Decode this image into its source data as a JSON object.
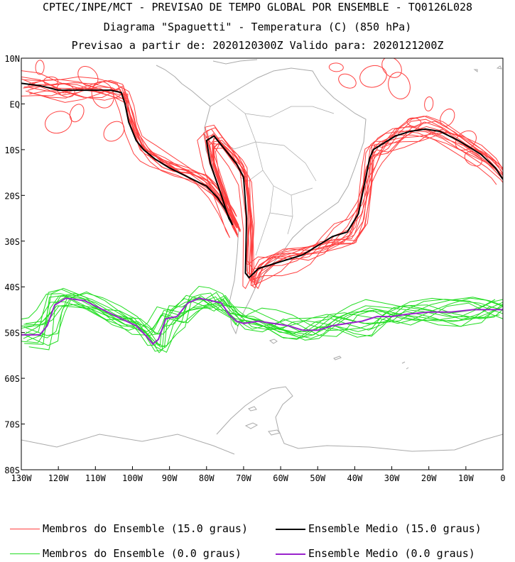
{
  "header": {
    "line1": "CPTEC/INPE/MCT - PREVISAO DE TEMPO GLOBAL POR ENSEMBLE - TQ0126L028",
    "line2": "Diagrama \"Spaguetti\" - Temperatura (C) (850 hPa)",
    "line3": "Previsao a partir de: 2020120300Z  Valido para: 2020121200Z"
  },
  "colors": {
    "members_15": "#ff4040",
    "mean_15": "#000000",
    "members_0": "#22dd22",
    "mean_0": "#9922cc",
    "coast": "#aaaaaa",
    "frame": "#000000"
  },
  "legend": [
    {
      "label": "Membros do Ensemble (15.0 graus)",
      "color": "#ff4040",
      "width": 1
    },
    {
      "label": "Ensemble Medio (15.0 graus)",
      "color": "#000000",
      "width": 2
    },
    {
      "label": "Membros do Ensemble (0.0 graus)",
      "color": "#22dd22",
      "width": 1
    },
    {
      "label": "Ensemble Medio (0.0 graus)",
      "color": "#9922cc",
      "width": 2
    }
  ],
  "chart_data": {
    "type": "line",
    "subtype": "spaghetti contour map",
    "xlim": [
      -130,
      0
    ],
    "ylim": [
      -80,
      10
    ],
    "x_ticks": [
      {
        "v": -130,
        "label": "130W"
      },
      {
        "v": -120,
        "label": "120W"
      },
      {
        "v": -110,
        "label": "110W"
      },
      {
        "v": -100,
        "label": "100W"
      },
      {
        "v": -90,
        "label": "90W"
      },
      {
        "v": -80,
        "label": "80W"
      },
      {
        "v": -70,
        "label": "70W"
      },
      {
        "v": -60,
        "label": "60W"
      },
      {
        "v": -50,
        "label": "50W"
      },
      {
        "v": -40,
        "label": "40W"
      },
      {
        "v": -30,
        "label": "30W"
      },
      {
        "v": -20,
        "label": "20W"
      },
      {
        "v": -10,
        "label": "10W"
      },
      {
        "v": 0,
        "label": "0"
      }
    ],
    "y_ticks": [
      {
        "v": 10,
        "label": "10N"
      },
      {
        "v": 0,
        "label": "EQ"
      },
      {
        "v": -10,
        "label": "10S"
      },
      {
        "v": -20,
        "label": "20S"
      },
      {
        "v": -30,
        "label": "30S"
      },
      {
        "v": -40,
        "label": "40S"
      },
      {
        "v": -50,
        "label": "50S"
      },
      {
        "v": -60,
        "label": "60S"
      },
      {
        "v": -70,
        "label": "70S"
      },
      {
        "v": -80,
        "label": "80S"
      }
    ],
    "series": [
      {
        "name": "Ensemble Medio (15.0 graus)",
        "contour_value": 15.0,
        "x": [
          -130,
          -125,
          -120,
          -115,
          -110,
          -106,
          -103,
          -102,
          -101,
          -99,
          -97,
          -94,
          -90,
          -85,
          -80,
          -77,
          -75,
          -73.5,
          -73,
          -74,
          -76,
          -79,
          -80,
          -78,
          -75,
          -72,
          -70,
          -69.2,
          -69.5,
          -68.5,
          -66,
          -62,
          -58,
          -54,
          -50,
          -46,
          -42,
          -39,
          -37,
          -36,
          -35,
          -33,
          -29,
          -25,
          -21,
          -17,
          -12,
          -6,
          -2,
          0
        ],
        "y": [
          4.5,
          4,
          3,
          3,
          3,
          3,
          2.5,
          0,
          -4,
          -8,
          -10,
          -12,
          -14,
          -16,
          -18,
          -20.5,
          -23,
          -25.5,
          -26.5,
          -25,
          -20,
          -13,
          -8,
          -7,
          -10,
          -13,
          -16,
          -25,
          -37,
          -38,
          -36,
          -35,
          -34,
          -33,
          -31,
          -29,
          -28,
          -24,
          -16,
          -12,
          -10,
          -9,
          -7,
          -6,
          -5.5,
          -6,
          -8,
          -11,
          -14,
          -16.5
        ]
      },
      {
        "name": "Ensemble Medio (0.0 graus)",
        "contour_value": 0.0,
        "x": [
          -130,
          -125,
          -123,
          -121,
          -118,
          -113,
          -108,
          -103,
          -99,
          -96,
          -94.5,
          -93,
          -91,
          -88,
          -85,
          -82,
          -79,
          -76,
          -74,
          -72,
          -70,
          -66,
          -62,
          -58,
          -54,
          -50,
          -46,
          -42,
          -38,
          -34,
          -30,
          -26,
          -20,
          -14,
          -8,
          -4,
          0
        ],
        "y": [
          -50.5,
          -50.5,
          -48.5,
          -44,
          -42.5,
          -43,
          -45,
          -47,
          -48.5,
          -51,
          -52.5,
          -51.5,
          -47,
          -46.5,
          -43.5,
          -42.5,
          -43,
          -43.5,
          -46,
          -47.5,
          -48,
          -47.5,
          -48,
          -48.5,
          -49.5,
          -49.5,
          -48.5,
          -48,
          -47.5,
          -46.5,
          -46.5,
          -46,
          -45.5,
          -45.5,
          -45,
          -45,
          -45
        ]
      }
    ]
  }
}
